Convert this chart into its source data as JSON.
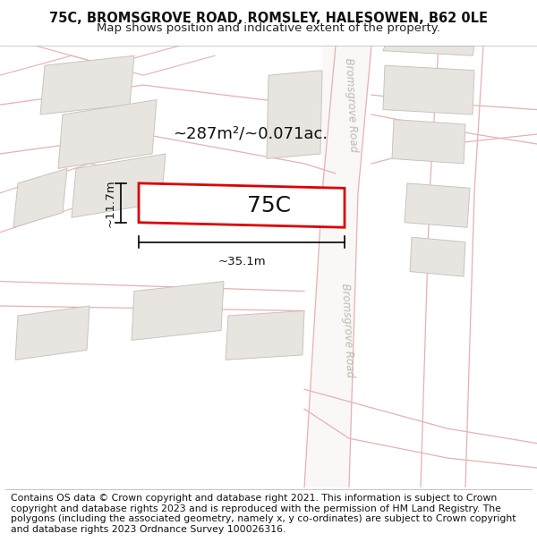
{
  "title_line1": "75C, BROMSGROVE ROAD, ROMSLEY, HALESOWEN, B62 0LE",
  "title_line2": "Map shows position and indicative extent of the property.",
  "footer_text": "Contains OS data © Crown copyright and database right 2021. This information is subject to Crown copyright and database rights 2023 and is reproduced with the permission of HM Land Registry. The polygons (including the associated geometry, namely x, y co-ordinates) are subject to Crown copyright and database rights 2023 Ordnance Survey 100026316.",
  "road_label": "Bromsgrove Road",
  "label_75c": "75C",
  "area_text": "~287m²/~0.071ac.",
  "dim_width": "~35.1m",
  "dim_height": "~11.7m",
  "title_fontsize": 10.5,
  "subtitle_fontsize": 9.5,
  "footer_fontsize": 7.8,
  "map_bg": "#ffffff",
  "road_fill": "#f5f2ef",
  "road_line_color": "#e8b0b0",
  "building_fill": "#e8e5e0",
  "building_edge": "#c8c4be",
  "plot_fill": "#ffffff",
  "plot_edge": "#dd0000",
  "dim_color": "#000000",
  "area_fontsize": 13,
  "label_fontsize": 18
}
